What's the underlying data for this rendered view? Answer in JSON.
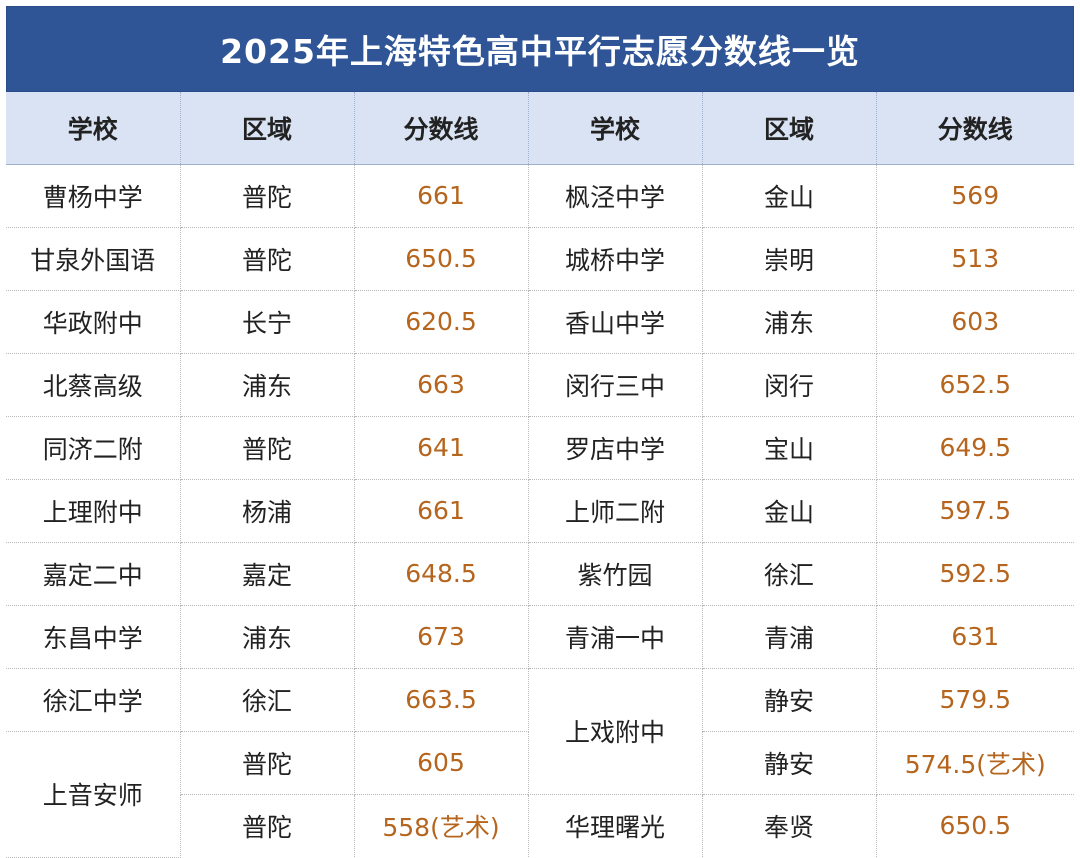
{
  "title": "2025年上海特色高中平行志愿分数线一览",
  "headers": [
    "学校",
    "区域",
    "分数线",
    "学校",
    "区域",
    "分数线"
  ],
  "rows": [
    {
      "school_l": "曹杨中学",
      "district_l": "普陀",
      "score_l": "661",
      "school_r": "枫泾中学",
      "district_r": "金山",
      "score_r": "569"
    },
    {
      "school_l": "甘泉外国语",
      "district_l": "普陀",
      "score_l": "650.5",
      "school_r": "城桥中学",
      "district_r": "崇明",
      "score_r": "513"
    },
    {
      "school_l": "华政附中",
      "district_l": "长宁",
      "score_l": "620.5",
      "school_r": "香山中学",
      "district_r": "浦东",
      "score_r": "603"
    },
    {
      "school_l": "北蔡高级",
      "district_l": "浦东",
      "score_l": "663",
      "school_r": "闵行三中",
      "district_r": "闵行",
      "score_r": "652.5"
    },
    {
      "school_l": "同济二附",
      "district_l": "普陀",
      "score_l": "641",
      "school_r": "罗店中学",
      "district_r": "宝山",
      "score_r": "649.5"
    },
    {
      "school_l": "上理附中",
      "district_l": "杨浦",
      "score_l": "661",
      "school_r": "上师二附",
      "district_r": "金山",
      "score_r": "597.5"
    },
    {
      "school_l": "嘉定二中",
      "district_l": "嘉定",
      "score_l": "648.5",
      "school_r": "紫竹园",
      "district_r": "徐汇",
      "score_r": "592.5"
    },
    {
      "school_l": "东昌中学",
      "district_l": "浦东",
      "score_l": "673",
      "school_r": "青浦一中",
      "district_r": "青浦",
      "score_r": "631"
    },
    {
      "school_l": "徐汇中学",
      "district_l": "徐汇",
      "score_l": "663.5",
      "district_r": "静安",
      "score_r": "579.5"
    },
    {
      "district_l": "普陀",
      "score_l": "605",
      "district_r": "静安",
      "score_r": "574.5(艺术)"
    },
    {
      "district_l": "普陀",
      "score_l": "558(艺术)",
      "school_r": "华理曙光",
      "district_r": "奉贤",
      "score_r": "650.5"
    }
  ],
  "merged": {
    "shang_yin_an_shi": "上音安师",
    "shang_xi_fu_zhong": "上戏附中"
  }
}
